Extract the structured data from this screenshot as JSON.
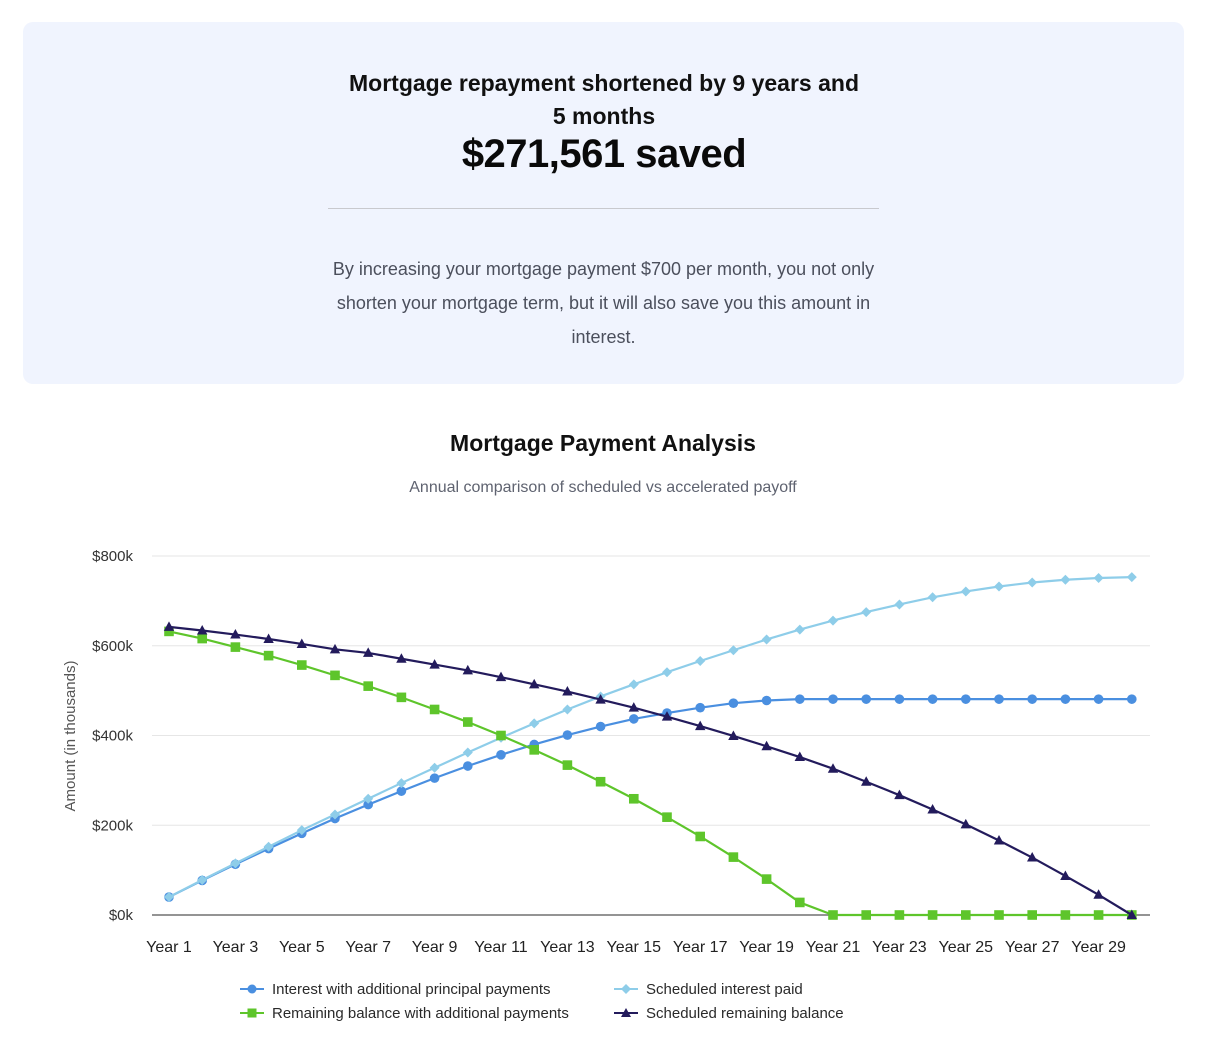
{
  "summary": {
    "heading": "Mortgage repayment shortened by 9 years and 5 months",
    "savings": "$271,561 saved",
    "description": "By increasing your mortgage payment $700 per month, you not only shorten your mortgage term, but it will also save you this amount in interest."
  },
  "chart_data": {
    "type": "line",
    "title": "Mortgage Payment Analysis",
    "subtitle": "Annual comparison of scheduled vs accelerated payoff",
    "xlabel": "",
    "ylabel": "Amount (in thousands)",
    "ylim": [
      0,
      800
    ],
    "yticks": [
      0,
      200,
      400,
      600,
      800
    ],
    "ytick_labels": [
      "$0k",
      "$200k",
      "$400k",
      "$600k",
      "$800k"
    ],
    "grid": true,
    "legend_position": "bottom",
    "categories": [
      "Year 1",
      "Year 2",
      "Year 3",
      "Year 4",
      "Year 5",
      "Year 6",
      "Year 7",
      "Year 8",
      "Year 9",
      "Year 10",
      "Year 11",
      "Year 12",
      "Year 13",
      "Year 14",
      "Year 15",
      "Year 16",
      "Year 17",
      "Year 18",
      "Year 19",
      "Year 20",
      "Year 21",
      "Year 22",
      "Year 23",
      "Year 24",
      "Year 25",
      "Year 26",
      "Year 27",
      "Year 28",
      "Year 29",
      "Year 30"
    ],
    "series": [
      {
        "name": "Interest with additional principal payments",
        "color": "#4a8fe0",
        "marker": "circle",
        "values": [
          40,
          77,
          113,
          148,
          182,
          215,
          246,
          276,
          305,
          332,
          357,
          380,
          401,
          420,
          437,
          450,
          462,
          472,
          478,
          481,
          481,
          481,
          481,
          481,
          481,
          481,
          481,
          481,
          481,
          481
        ]
      },
      {
        "name": "Scheduled interest paid",
        "color": "#8ecde9",
        "marker": "diamond",
        "values": [
          40,
          78,
          115,
          152,
          189,
          224,
          259,
          294,
          328,
          362,
          395,
          427,
          458,
          487,
          514,
          541,
          566,
          590,
          614,
          636,
          656,
          675,
          692,
          708,
          721,
          732,
          741,
          747,
          751,
          753
        ]
      },
      {
        "name": "Remaining balance with additional payments",
        "color": "#5ec52b",
        "marker": "square",
        "values": [
          632,
          616,
          597,
          578,
          557,
          534,
          510,
          485,
          458,
          430,
          400,
          368,
          334,
          297,
          259,
          218,
          175,
          129,
          80,
          28,
          0,
          0,
          0,
          0,
          0,
          0,
          0,
          0,
          0,
          0
        ]
      },
      {
        "name": "Scheduled remaining balance",
        "color": "#231b5c",
        "marker": "triangle",
        "values": [
          642,
          634,
          625,
          615,
          604,
          592,
          584,
          571,
          558,
          545,
          530,
          514,
          498,
          480,
          462,
          442,
          421,
          399,
          376,
          352,
          326,
          297,
          267,
          235,
          202,
          166,
          128,
          87,
          45,
          0
        ]
      }
    ]
  }
}
